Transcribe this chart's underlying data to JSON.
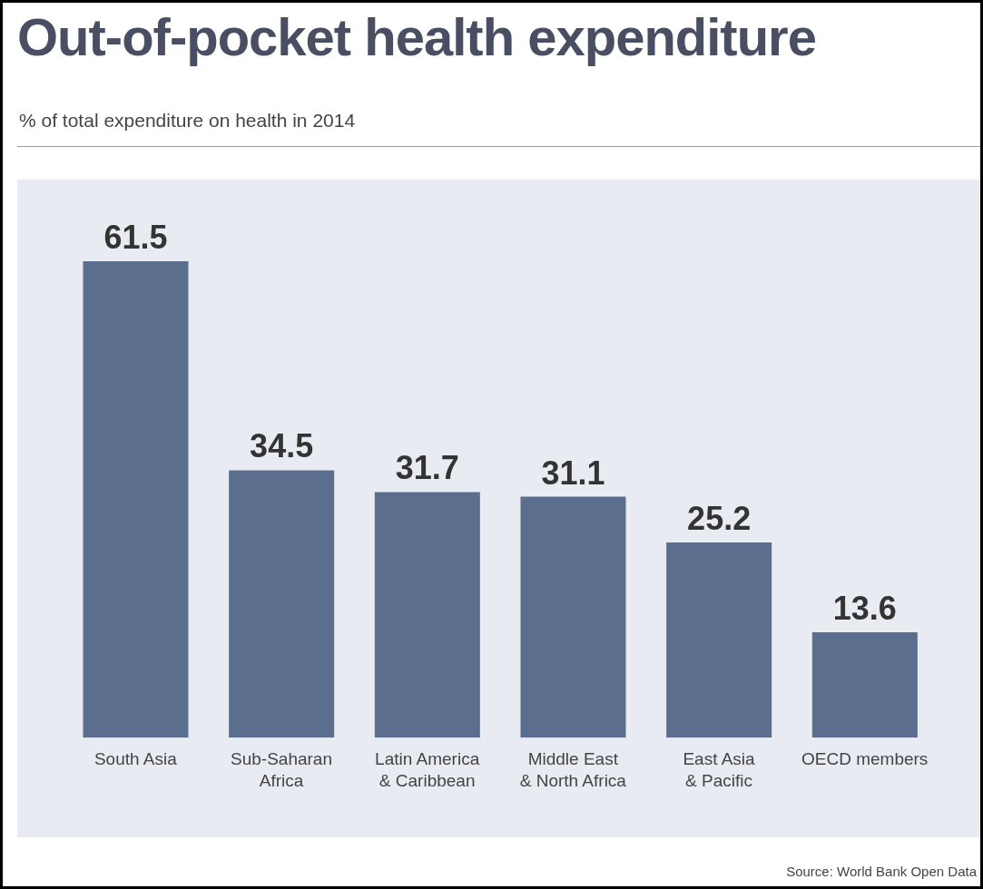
{
  "chart_data": {
    "type": "bar",
    "title": "Out-of-pocket health expenditure",
    "subtitle": "% of total expenditure on health in 2014",
    "categories": [
      "South Asia",
      "Sub-Saharan Africa",
      "Latin America & Caribbean",
      "Middle East & North Africa",
      "East Asia & Pacific",
      "OECD members"
    ],
    "values": [
      61.5,
      34.5,
      31.7,
      31.1,
      25.2,
      13.6
    ],
    "color": "#5b6e8e",
    "data_labels": true,
    "grid": false,
    "legend": false,
    "annotations": [
      "Source: World Bank Open Data"
    ]
  }
}
